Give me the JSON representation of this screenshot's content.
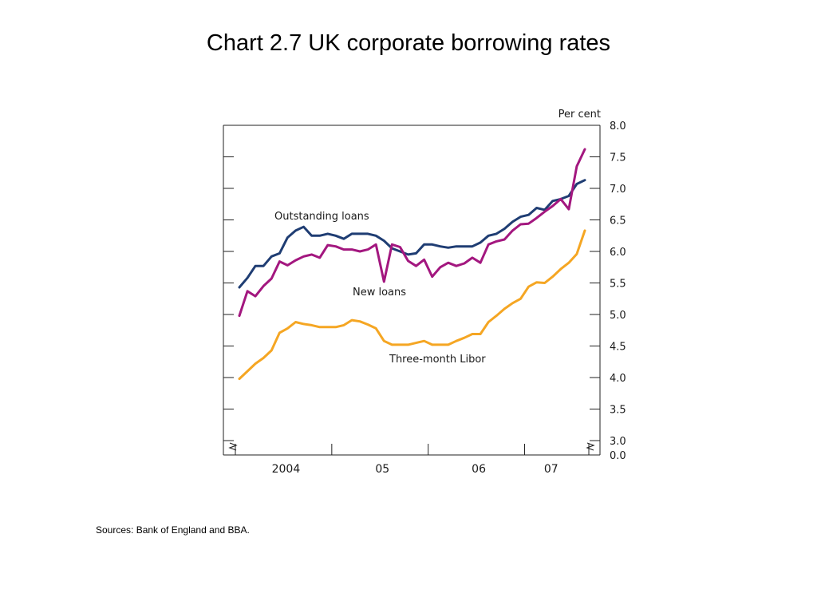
{
  "slide": {
    "title": "Chart 2.7  UK corporate borrowing rates",
    "sources": "Sources:  Bank of England and BBA."
  },
  "chart_data": {
    "type": "line",
    "unit_label": "Per cent",
    "x_tick_labels": [
      "2004",
      "05",
      "06",
      "07"
    ],
    "x_tick_months": [
      6,
      18,
      30,
      39
    ],
    "y_tick_labels": [
      "8.0",
      "7.5",
      "7.0",
      "6.5",
      "6.0",
      "5.5",
      "5.0",
      "4.5",
      "4.0",
      "3.5",
      "3.0",
      "0.0"
    ],
    "ylim": [
      3.0,
      8.0
    ],
    "axis_break": true,
    "grid": false,
    "x_months_note": "monthly observations",
    "series": [
      {
        "name": "Outstanding loans",
        "color": "#1f3d73",
        "values": [
          5.43,
          5.58,
          5.77,
          5.77,
          5.92,
          5.97,
          6.22,
          6.33,
          6.39,
          6.25,
          6.25,
          6.28,
          6.25,
          6.2,
          6.28,
          6.28,
          6.28,
          6.25,
          6.17,
          6.05,
          6.0,
          5.95,
          5.97,
          6.11,
          6.11,
          6.08,
          6.06,
          6.08,
          6.08,
          6.08,
          6.14,
          6.25,
          6.28,
          6.36,
          6.47,
          6.55,
          6.58,
          6.69,
          6.66,
          6.8,
          6.83,
          6.88,
          7.07,
          7.13
        ]
      },
      {
        "name": "New loans",
        "color": "#a3177f",
        "values": [
          4.98,
          5.37,
          5.29,
          5.45,
          5.57,
          5.84,
          5.78,
          5.86,
          5.92,
          5.95,
          5.9,
          6.1,
          6.08,
          6.03,
          6.03,
          6.0,
          6.03,
          6.11,
          5.52,
          6.11,
          6.07,
          5.85,
          5.77,
          5.87,
          5.6,
          5.75,
          5.82,
          5.77,
          5.81,
          5.9,
          5.82,
          6.11,
          6.16,
          6.19,
          6.33,
          6.43,
          6.44,
          6.53,
          6.63,
          6.72,
          6.83,
          6.67,
          7.35,
          7.62
        ]
      },
      {
        "name": "Three-month Libor",
        "color": "#f5a623",
        "values": [
          3.98,
          4.1,
          4.22,
          4.31,
          4.43,
          4.71,
          4.78,
          4.88,
          4.85,
          4.83,
          4.8,
          4.8,
          4.8,
          4.83,
          4.91,
          4.89,
          4.84,
          4.78,
          4.58,
          4.52,
          4.52,
          4.52,
          4.55,
          4.58,
          4.52,
          4.52,
          4.52,
          4.58,
          4.63,
          4.69,
          4.69,
          4.88,
          4.98,
          5.09,
          5.18,
          5.25,
          5.44,
          5.51,
          5.5,
          5.6,
          5.72,
          5.82,
          5.96,
          6.33
        ]
      }
    ],
    "annotations": [
      "Outstanding loans",
      "New loans",
      "Three-month Libor"
    ]
  }
}
